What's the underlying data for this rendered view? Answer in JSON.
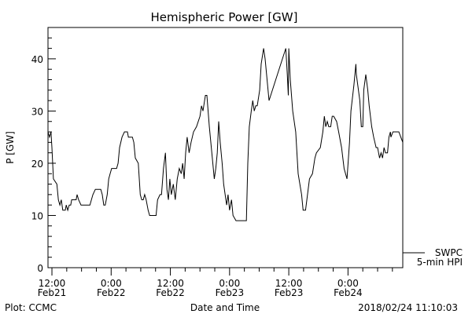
{
  "chart_data": {
    "type": "line",
    "title": "Hemispheric Power [GW]",
    "xlabel": "Date and Time",
    "ylabel": "P [GW]",
    "x_units": "hours since 2018-02-21 00:00",
    "xlim": [
      11.2,
      83.1
    ],
    "ylim": [
      0,
      46
    ],
    "yticks": [
      0,
      10,
      20,
      30,
      40
    ],
    "xticks": [
      {
        "x": 12,
        "label1": "12:00",
        "label2": "Feb21"
      },
      {
        "x": 24,
        "label1": "0:00",
        "label2": "Feb22"
      },
      {
        "x": 36,
        "label1": "12:00",
        "label2": "Feb22"
      },
      {
        "x": 48,
        "label1": "0:00",
        "label2": "Feb23"
      },
      {
        "x": 60,
        "label1": "12:00",
        "label2": "Feb23"
      },
      {
        "x": 72,
        "label1": "0:00",
        "label2": "Feb24"
      }
    ],
    "legend": {
      "placement": "right-bottom-outside",
      "line1": "SWPC",
      "line2": "5-min HPI"
    },
    "series": [
      {
        "name": "SWPC 5-min HPI",
        "color": "#000000",
        "points": [
          [
            11.2,
            26
          ],
          [
            11.5,
            25
          ],
          [
            11.8,
            26
          ],
          [
            12.0,
            23
          ],
          [
            12.3,
            17
          ],
          [
            13.0,
            16
          ],
          [
            13.3,
            13
          ],
          [
            13.6,
            12
          ],
          [
            13.9,
            13
          ],
          [
            14.2,
            11
          ],
          [
            14.7,
            11
          ],
          [
            14.9,
            12
          ],
          [
            15.2,
            11
          ],
          [
            15.5,
            12
          ],
          [
            15.8,
            12
          ],
          [
            16.0,
            13
          ],
          [
            16.9,
            13
          ],
          [
            17.1,
            14
          ],
          [
            17.4,
            13
          ],
          [
            17.9,
            12
          ],
          [
            19.7,
            12
          ],
          [
            20.0,
            13
          ],
          [
            20.3,
            14
          ],
          [
            20.8,
            15
          ],
          [
            21.9,
            15
          ],
          [
            22.2,
            14
          ],
          [
            22.5,
            12
          ],
          [
            22.8,
            12
          ],
          [
            23.2,
            14
          ],
          [
            23.5,
            17
          ],
          [
            23.8,
            18
          ],
          [
            24.1,
            19
          ],
          [
            25.1,
            19
          ],
          [
            25.4,
            20
          ],
          [
            25.7,
            23
          ],
          [
            26.2,
            25
          ],
          [
            26.7,
            26
          ],
          [
            27.3,
            26
          ],
          [
            27.5,
            25
          ],
          [
            28.3,
            25
          ],
          [
            28.6,
            24
          ],
          [
            28.9,
            21
          ],
          [
            29.5,
            20
          ],
          [
            29.9,
            14
          ],
          [
            30.2,
            13
          ],
          [
            30.5,
            13
          ],
          [
            30.8,
            14
          ],
          [
            31.1,
            13
          ],
          [
            31.5,
            11
          ],
          [
            31.8,
            10
          ],
          [
            33.1,
            10
          ],
          [
            33.4,
            13
          ],
          [
            33.9,
            14
          ],
          [
            34.2,
            14
          ],
          [
            34.6,
            19
          ],
          [
            35.0,
            22
          ],
          [
            35.3,
            15
          ],
          [
            35.6,
            13
          ],
          [
            35.9,
            17
          ],
          [
            36.2,
            14
          ],
          [
            36.6,
            16
          ],
          [
            37.0,
            13
          ],
          [
            37.4,
            17
          ],
          [
            37.8,
            19
          ],
          [
            38.2,
            18
          ],
          [
            38.5,
            20
          ],
          [
            38.8,
            17
          ],
          [
            39.1,
            22
          ],
          [
            39.4,
            25
          ],
          [
            39.8,
            22
          ],
          [
            40.2,
            24
          ],
          [
            40.7,
            26
          ],
          [
            41.3,
            27
          ],
          [
            42.0,
            29
          ],
          [
            42.3,
            31
          ],
          [
            42.6,
            30
          ],
          [
            43.1,
            33
          ],
          [
            43.4,
            33
          ],
          [
            43.9,
            27
          ],
          [
            44.5,
            21
          ],
          [
            44.9,
            17
          ],
          [
            45.2,
            19
          ],
          [
            45.5,
            22
          ],
          [
            45.8,
            28
          ],
          [
            46.1,
            24
          ],
          [
            46.5,
            20
          ],
          [
            46.8,
            16
          ],
          [
            47.1,
            14
          ],
          [
            47.4,
            12
          ],
          [
            47.7,
            14
          ],
          [
            48.0,
            11
          ],
          [
            48.4,
            13
          ],
          [
            48.7,
            10
          ],
          [
            49.3,
            9
          ],
          [
            51.4,
            9
          ],
          [
            51.7,
            20
          ],
          [
            52.0,
            27
          ],
          [
            52.4,
            30
          ],
          [
            52.7,
            32
          ],
          [
            53.0,
            30
          ],
          [
            53.3,
            31
          ],
          [
            53.6,
            31
          ],
          [
            54.1,
            34
          ],
          [
            54.4,
            39
          ],
          [
            54.9,
            42
          ],
          [
            55.2,
            40
          ],
          [
            56.0,
            32
          ],
          [
            59.4,
            42
          ],
          [
            59.7,
            37
          ],
          [
            59.9,
            33
          ],
          [
            60.0,
            42
          ],
          [
            60.3,
            36
          ],
          [
            60.8,
            30
          ],
          [
            61.4,
            26
          ],
          [
            61.9,
            18
          ],
          [
            62.6,
            14
          ],
          [
            62.9,
            11
          ],
          [
            63.4,
            11
          ],
          [
            63.8,
            14
          ],
          [
            64.2,
            17
          ],
          [
            64.8,
            18
          ],
          [
            65.3,
            21
          ],
          [
            65.6,
            22
          ],
          [
            66.4,
            23
          ],
          [
            66.9,
            26
          ],
          [
            67.2,
            29
          ],
          [
            67.5,
            27
          ],
          [
            67.8,
            28
          ],
          [
            68.1,
            27
          ],
          [
            68.5,
            27
          ],
          [
            68.8,
            29
          ],
          [
            69.1,
            29
          ],
          [
            69.7,
            28
          ],
          [
            70.1,
            26
          ],
          [
            70.7,
            23
          ],
          [
            71.2,
            19
          ],
          [
            71.8,
            17
          ],
          [
            72.3,
            24
          ],
          [
            72.6,
            30
          ],
          [
            73.2,
            35
          ],
          [
            73.6,
            39
          ],
          [
            73.7,
            37
          ],
          [
            74.4,
            32
          ],
          [
            74.7,
            27
          ],
          [
            75.0,
            27
          ],
          [
            75.2,
            34
          ],
          [
            75.6,
            37
          ],
          [
            76.0,
            34
          ],
          [
            76.3,
            31
          ],
          [
            76.8,
            27
          ],
          [
            77.2,
            25
          ],
          [
            77.7,
            23
          ],
          [
            78.0,
            23
          ],
          [
            78.4,
            21
          ],
          [
            78.7,
            22
          ],
          [
            79.0,
            21
          ],
          [
            79.3,
            23
          ],
          [
            79.6,
            22
          ],
          [
            80.0,
            22
          ],
          [
            80.3,
            25
          ],
          [
            80.6,
            26
          ],
          [
            80.7,
            25
          ],
          [
            81.1,
            26
          ],
          [
            82.3,
            26
          ],
          [
            82.7,
            25
          ],
          [
            83.1,
            24
          ]
        ]
      }
    ]
  },
  "footer": {
    "left": "Plot: CCMC",
    "right": "2018/02/24 11:10:03"
  }
}
